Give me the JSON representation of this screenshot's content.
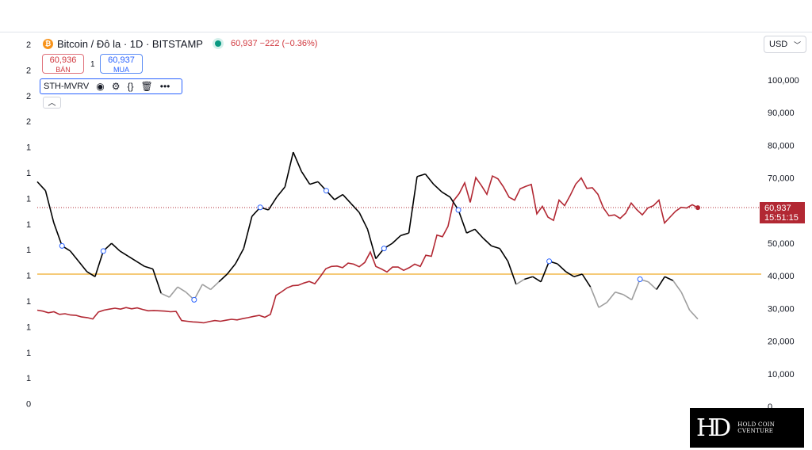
{
  "header": {
    "symbol_icon": "bitcoin-icon",
    "title": "Bitcoin / Đô la · 1D · BITSTAMP",
    "price_line": "60,937  −222 (−0.36%)"
  },
  "trade": {
    "sell_price": "60,936",
    "sell_label": "BÁN",
    "spread": "1",
    "buy_price": "60,937",
    "buy_label": "MUA"
  },
  "indicator": {
    "name": "STH-MVRV",
    "icons": [
      "eye-icon",
      "gear-icon",
      "braces-icon",
      "trash-icon",
      "more-icon"
    ]
  },
  "currency": "USD",
  "last_price": {
    "value": "60,937",
    "countdown": "15:51:15"
  },
  "logo_text": "HOLD COIN CVENTURE",
  "colors": {
    "price_series": "#b22833",
    "ratio_series": "#000000",
    "ratio_low": "#9e9e9e",
    "threshold": "#f2b84b",
    "accent": "#2962ff"
  },
  "chart_data": {
    "type": "line",
    "left_axis": {
      "ticks": [
        "2",
        "2",
        "2",
        "2",
        "1",
        "1",
        "1",
        "1",
        "1",
        "1",
        "1",
        "1",
        "1",
        "1",
        "0"
      ]
    },
    "right_axis": {
      "ticks": [
        "100,000",
        "90,000",
        "80,000",
        "70,000",
        "60,000",
        "50,000",
        "40,000",
        "30,000",
        "20,000",
        "10,000",
        "0"
      ],
      "ylim": [
        0,
        100000
      ]
    },
    "threshold_ratio": 1.0,
    "last_price_line": 60937,
    "series": [
      {
        "values": [
          29500,
          29200,
          28700,
          29000,
          28200,
          28400,
          28000,
          27900,
          27400,
          27200,
          26800,
          28900,
          29500,
          29800,
          30100,
          29800,
          30300,
          29900,
          30200,
          29700,
          29300,
          29400,
          29300,
          29200,
          29000,
          29100,
          26300,
          26100,
          25900,
          25800,
          25600,
          26000,
          26300,
          26100,
          26400,
          26700,
          26500,
          26900,
          27200,
          27600,
          27900,
          27300,
          28200,
          34000,
          35100,
          36300,
          37000,
          37100,
          37800,
          38300,
          37600,
          39800,
          42200,
          42900,
          43000,
          42500,
          43900,
          43600,
          42800,
          44100,
          47300,
          42900,
          42100,
          41200,
          42700,
          42700,
          41700,
          42500,
          43600,
          42900,
          46300,
          46000,
          52500,
          52000,
          55200,
          63000,
          65200,
          68500,
          62500,
          70100,
          67700,
          65000,
          70600,
          69700,
          67200,
          64100,
          63200,
          66700,
          67400,
          68000,
          59000,
          61300,
          58000,
          57000,
          63200,
          61500,
          64600,
          68100,
          70000,
          66800,
          67000,
          65000,
          60800,
          58400,
          58700,
          57600,
          59200,
          62300,
          60300,
          58700,
          60800,
          61500,
          63200,
          56200,
          58000,
          59800,
          61000,
          60800,
          61800,
          60900
        ]
      },
      {
        "values": [
          1.72,
          1.65,
          1.4,
          1.22,
          1.18,
          1.1,
          1.02,
          0.98,
          1.18,
          1.24,
          1.18,
          1.14,
          1.1,
          1.06,
          1.04,
          0.85,
          0.82,
          0.9,
          0.86,
          0.8,
          0.92,
          0.88,
          0.94,
          1.0,
          1.08,
          1.2,
          1.45,
          1.52,
          1.5,
          1.6,
          1.68,
          1.95,
          1.8,
          1.7,
          1.72,
          1.65,
          1.58,
          1.62,
          1.55,
          1.48,
          1.35,
          1.12,
          1.2,
          1.24,
          1.3,
          1.32,
          1.76,
          1.78,
          1.7,
          1.64,
          1.6,
          1.5,
          1.32,
          1.35,
          1.28,
          1.22,
          1.2,
          1.1,
          0.92,
          0.96,
          0.98,
          0.94,
          1.1,
          1.08,
          1.02,
          0.98,
          1.0,
          0.9,
          0.74,
          0.78,
          0.86,
          0.84,
          0.8,
          0.96,
          0.94,
          0.88,
          0.98,
          0.95,
          0.86,
          0.72,
          0.65
        ]
      }
    ]
  }
}
